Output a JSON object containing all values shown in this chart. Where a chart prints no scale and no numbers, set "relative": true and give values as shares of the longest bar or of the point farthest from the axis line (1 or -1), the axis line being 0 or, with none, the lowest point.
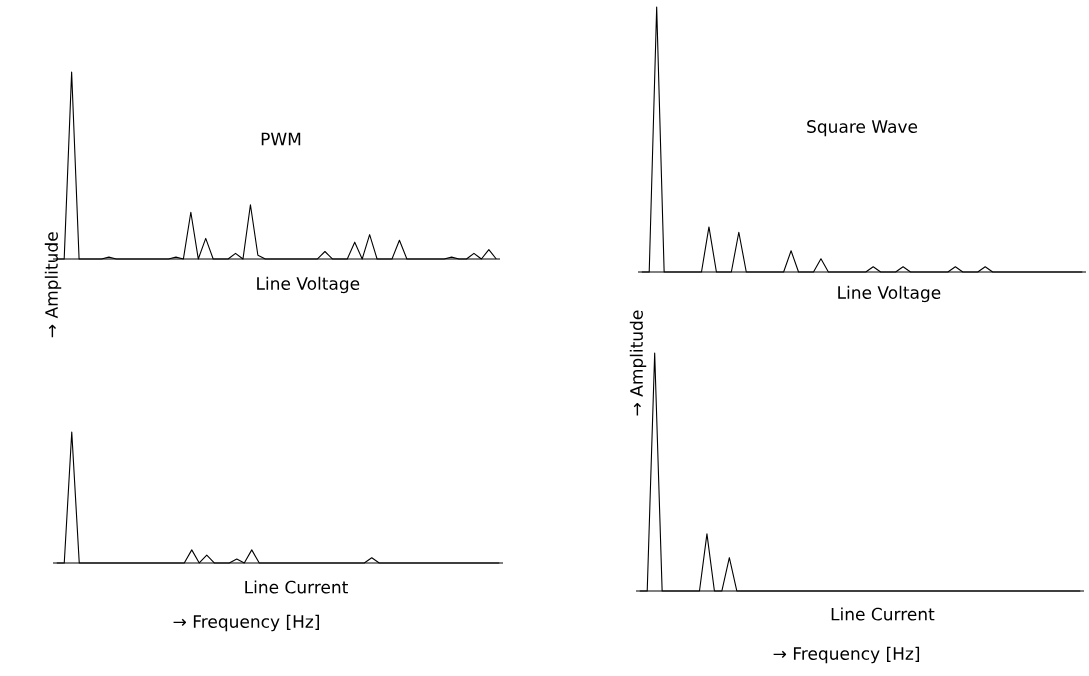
{
  "chart_data": [
    {
      "type": "line",
      "relative": true,
      "title": "PWM",
      "xlabel": "Line Voltage",
      "ylabel": "→ Amplitude",
      "color": "#000000",
      "categories": [
        null,
        null,
        null,
        null,
        null,
        null,
        null,
        null,
        null,
        null,
        null,
        null,
        null,
        null,
        null,
        null,
        null,
        null,
        null,
        null,
        null,
        null,
        null,
        null,
        null,
        null,
        null,
        null,
        null,
        null,
        null,
        null,
        null,
        null,
        null,
        null,
        null,
        null,
        null,
        null,
        null,
        null,
        null,
        null,
        null,
        null,
        null,
        null,
        null,
        null,
        null,
        null,
        null,
        null,
        null,
        null,
        null,
        null,
        null,
        null
      ],
      "values": [
        0,
        0,
        1,
        0,
        0,
        0,
        0,
        0.01,
        0,
        0,
        0,
        0,
        0,
        0,
        0,
        0,
        0.01,
        0,
        0.25,
        0,
        0.11,
        0,
        0,
        0,
        0.03,
        0,
        0.29,
        0.02,
        0,
        0,
        0,
        0,
        0,
        0,
        0,
        0,
        0.04,
        0,
        0,
        0,
        0.09,
        0,
        0.13,
        0,
        0,
        0,
        0.1,
        0,
        0,
        0,
        0,
        0,
        0,
        0.01,
        0,
        0,
        0.03,
        0,
        0.05,
        0
      ]
    },
    {
      "type": "line",
      "relative": true,
      "xlabel": "Line Current",
      "annotations": [
        "→ Frequency [Hz]"
      ],
      "color": "#000000",
      "categories": [
        null,
        null,
        null,
        null,
        null,
        null,
        null,
        null,
        null,
        null,
        null,
        null,
        null,
        null,
        null,
        null,
        null,
        null,
        null,
        null,
        null,
        null,
        null,
        null,
        null,
        null,
        null,
        null,
        null,
        null,
        null,
        null,
        null,
        null,
        null,
        null,
        null,
        null,
        null,
        null,
        null,
        null,
        null,
        null,
        null,
        null,
        null,
        null,
        null,
        null,
        null,
        null,
        null,
        null,
        null,
        null,
        null,
        null,
        null,
        null
      ],
      "values": [
        0,
        0,
        1,
        0,
        0,
        0,
        0,
        0,
        0,
        0,
        0,
        0,
        0,
        0,
        0,
        0,
        0,
        0,
        0.1,
        0,
        0.06,
        0,
        0,
        0,
        0.03,
        0,
        0.1,
        0,
        0,
        0,
        0,
        0,
        0,
        0,
        0,
        0,
        0,
        0,
        0,
        0,
        0,
        0,
        0.04,
        0,
        0,
        0,
        0,
        0,
        0,
        0,
        0,
        0,
        0,
        0,
        0,
        0,
        0,
        0,
        0,
        0
      ]
    },
    {
      "type": "line",
      "relative": true,
      "title": "Square Wave",
      "xlabel": "Line Voltage",
      "ylabel": "→ Amplitude",
      "color": "#000000",
      "categories": [
        null,
        null,
        null,
        null,
        null,
        null,
        null,
        null,
        null,
        null,
        null,
        null,
        null,
        null,
        null,
        null,
        null,
        null,
        null,
        null,
        null,
        null,
        null,
        null,
        null,
        null,
        null,
        null,
        null,
        null,
        null,
        null,
        null,
        null,
        null,
        null,
        null,
        null,
        null,
        null,
        null,
        null,
        null,
        null,
        null,
        null,
        null,
        null,
        null,
        null,
        null,
        null,
        null,
        null,
        null,
        null,
        null,
        null,
        null,
        null
      ],
      "values": [
        0,
        0,
        1,
        0,
        0,
        0,
        0,
        0,
        0,
        0.17,
        0,
        0,
        0,
        0.15,
        0,
        0,
        0,
        0,
        0,
        0,
        0.08,
        0,
        0,
        0,
        0.05,
        0,
        0,
        0,
        0,
        0,
        0,
        0.02,
        0,
        0,
        0,
        0.02,
        0,
        0,
        0,
        0,
        0,
        0,
        0.02,
        0,
        0,
        0,
        0.02,
        0,
        0,
        0,
        0,
        0,
        0,
        0,
        0,
        0,
        0,
        0,
        0,
        0
      ]
    },
    {
      "type": "line",
      "relative": true,
      "xlabel": "Line Current",
      "annotations": [
        "→ Frequency [Hz]"
      ],
      "color": "#000000",
      "categories": [
        null,
        null,
        null,
        null,
        null,
        null,
        null,
        null,
        null,
        null,
        null,
        null,
        null,
        null,
        null,
        null,
        null,
        null,
        null,
        null,
        null,
        null,
        null,
        null,
        null,
        null,
        null,
        null,
        null,
        null,
        null,
        null,
        null,
        null,
        null,
        null,
        null,
        null,
        null,
        null,
        null,
        null,
        null,
        null,
        null,
        null,
        null,
        null,
        null,
        null,
        null,
        null,
        null,
        null,
        null,
        null,
        null,
        null,
        null,
        null
      ],
      "values": [
        0,
        0,
        1,
        0,
        0,
        0,
        0,
        0,
        0,
        0.24,
        0,
        0,
        0.14,
        0,
        0,
        0,
        0,
        0,
        0,
        0,
        0,
        0,
        0,
        0,
        0,
        0,
        0,
        0,
        0,
        0,
        0,
        0,
        0,
        0,
        0,
        0,
        0,
        0,
        0,
        0,
        0,
        0,
        0,
        0,
        0,
        0,
        0,
        0,
        0,
        0,
        0,
        0,
        0,
        0,
        0,
        0,
        0,
        0,
        0,
        0
      ]
    }
  ]
}
